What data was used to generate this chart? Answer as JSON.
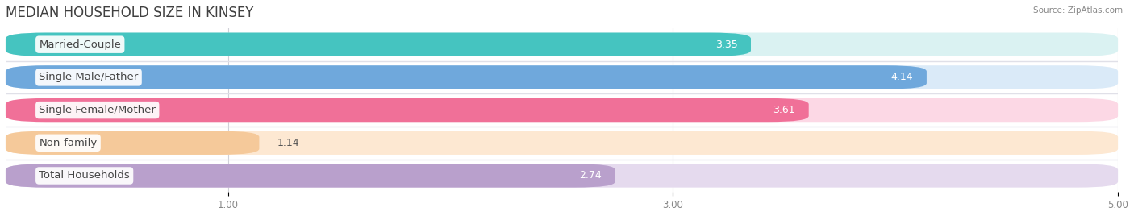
{
  "title": "MEDIAN HOUSEHOLD SIZE IN KINSEY",
  "source": "Source: ZipAtlas.com",
  "categories": [
    "Married-Couple",
    "Single Male/Father",
    "Single Female/Mother",
    "Non-family",
    "Total Households"
  ],
  "values": [
    3.35,
    4.14,
    3.61,
    1.14,
    2.74
  ],
  "bar_colors": [
    "#45c4c0",
    "#6fa8dc",
    "#f07098",
    "#f5c99a",
    "#b9a0cc"
  ],
  "bar_bg_colors": [
    "#daf2f2",
    "#daeaf8",
    "#fcd8e5",
    "#fde8d2",
    "#e5daee"
  ],
  "xlim_min": 0,
  "xlim_max": 5.0,
  "xticks": [
    1.0,
    3.0,
    5.0
  ],
  "value_inside_threshold": 2.5,
  "background_color": "#ffffff",
  "row_bg_color": "#f5f5f8",
  "separator_color": "#e0e0e8",
  "title_fontsize": 12,
  "label_fontsize": 9.5,
  "value_fontsize": 9,
  "tick_fontsize": 8.5
}
